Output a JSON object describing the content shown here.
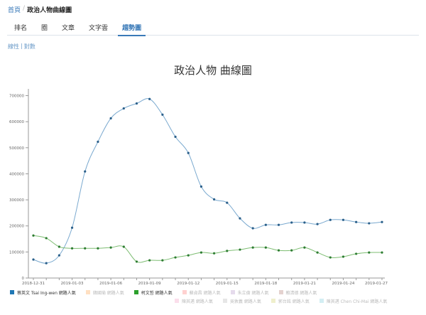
{
  "breadcrumb": {
    "home": "首頁",
    "separator": "/",
    "current": "政治人物曲線圖"
  },
  "tabs": [
    {
      "label": "排名",
      "active": false
    },
    {
      "label": "圈",
      "active": false
    },
    {
      "label": "文章",
      "active": false
    },
    {
      "label": "文字雲",
      "active": false
    },
    {
      "label": "趨勢圖",
      "active": true
    }
  ],
  "scale_links": {
    "linear": "線性",
    "separator": "|",
    "log": "對數"
  },
  "colors": {
    "accent": "#3a7ab8",
    "series_blue": "#2e7eb8",
    "series_green": "#2ca02c",
    "axis": "#999999"
  },
  "legend": {
    "row1": [
      {
        "label": "蔡英文 Tsai Ing-wen 網路人氣",
        "color": "#1f77b4",
        "on": true
      },
      {
        "label": "韓國瑜 網路人氣",
        "color": "#ffbb78",
        "on": false
      },
      {
        "label": "柯文哲 網路人氣",
        "color": "#2ca02c",
        "on": true
      },
      {
        "label": "蘇貞昌 網路人氣",
        "color": "#ff9896",
        "on": false
      },
      {
        "label": "朱立倫 網路人氣",
        "color": "#c5b0d5",
        "on": false
      },
      {
        "label": "賴清德 網路人氣",
        "color": "#c49c94",
        "on": false
      }
    ],
    "row2": [
      {
        "label": "陳其邁 網路人氣",
        "color": "#f7b6d2",
        "on": false
      },
      {
        "label": "吳敦義 網路人氣",
        "color": "#c7c7c7",
        "on": false
      },
      {
        "label": "郭台銘 網路人氣",
        "color": "#dbdb8d",
        "on": false
      },
      {
        "label": "陳其邁 Chen Chi-Mai 網路人氣",
        "color": "#9edae5",
        "on": false
      }
    ]
  },
  "chart_data": {
    "type": "line",
    "title": "政治人物 曲線圖",
    "xlabel": "",
    "ylabel": "",
    "ylim": [
      0,
      700000
    ],
    "yticks": [
      0,
      100000,
      200000,
      300000,
      400000,
      500000,
      600000,
      700000
    ],
    "xtick_labels": [
      "2018-12-31",
      "2019-01-03",
      "2019-01-06",
      "2019-01-09",
      "2019-01-12",
      "2019-01-15",
      "2019-01-18",
      "2019-01-21",
      "2019-01-24",
      "2019-01-27"
    ],
    "x": [
      "2018-12-31",
      "2019-01-01",
      "2019-01-02",
      "2019-01-03",
      "2019-01-04",
      "2019-01-05",
      "2019-01-06",
      "2019-01-07",
      "2019-01-08",
      "2019-01-09",
      "2019-01-10",
      "2019-01-11",
      "2019-01-12",
      "2019-01-13",
      "2019-01-14",
      "2019-01-15",
      "2019-01-16",
      "2019-01-17",
      "2019-01-18",
      "2019-01-19",
      "2019-01-20",
      "2019-01-21",
      "2019-01-22",
      "2019-01-23",
      "2019-01-24",
      "2019-01-25",
      "2019-01-26",
      "2019-01-27"
    ],
    "series": [
      {
        "name": "蔡英文 Tsai Ing-wen 網路人氣",
        "color": "#2e7eb8",
        "values": [
          71000,
          57000,
          87000,
          193000,
          409000,
          523000,
          613000,
          651000,
          670000,
          687000,
          627000,
          542000,
          480000,
          351000,
          302000,
          289000,
          229000,
          191000,
          204000,
          204000,
          213000,
          213000,
          207000,
          223000,
          223000,
          215000,
          210000,
          215000
        ]
      },
      {
        "name": "柯文哲 網路人氣",
        "color": "#2ca02c",
        "values": [
          163000,
          153000,
          120000,
          114000,
          114000,
          114000,
          117000,
          120000,
          63000,
          68000,
          68000,
          79000,
          87000,
          98000,
          95000,
          104000,
          109000,
          117000,
          117000,
          106000,
          106000,
          117000,
          98000,
          79000,
          82000,
          93000,
          98000,
          98000
        ]
      }
    ],
    "grid": false,
    "legend_position": "bottom"
  }
}
